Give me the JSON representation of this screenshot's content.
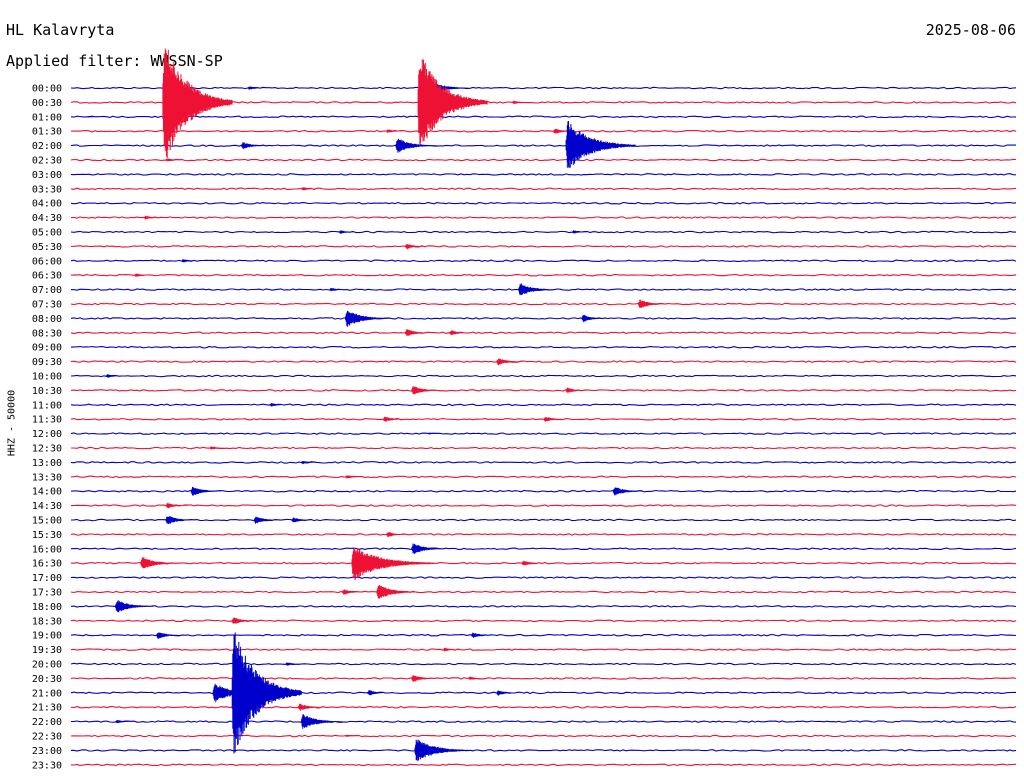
{
  "header": {
    "station": "HL Kalavryta",
    "date": "2025-08-06",
    "filter_label": "Applied filter: WWSSN-SP"
  },
  "chart_data": {
    "type": "line",
    "title": "HL Kalavryta",
    "ylabel": "HHZ - 50000",
    "colors": [
      "#0000cc",
      "#ee1133"
    ],
    "x_range_minutes": [
      0,
      30
    ],
    "trace_labels": [
      "00:00",
      "00:30",
      "01:00",
      "01:30",
      "02:00",
      "02:30",
      "03:00",
      "03:30",
      "04:00",
      "04:30",
      "05:00",
      "05:30",
      "06:00",
      "06:30",
      "07:00",
      "07:30",
      "08:00",
      "08:30",
      "09:00",
      "09:30",
      "10:00",
      "10:30",
      "11:00",
      "11:30",
      "12:00",
      "12:30",
      "13:00",
      "13:30",
      "14:00",
      "14:30",
      "15:00",
      "15:30",
      "16:00",
      "16:30",
      "17:00",
      "17:30",
      "18:00",
      "18:30",
      "19:00",
      "19:30",
      "20:00",
      "20:30",
      "21:00",
      "21:30",
      "22:00",
      "22:30",
      "23:00",
      "23:30"
    ],
    "events": [
      {
        "trace": 0,
        "minute": 11.3,
        "amplitude": 8
      },
      {
        "trace": 0,
        "minute": 5.6,
        "amplitude": 2
      },
      {
        "trace": 1,
        "minute": 2.9,
        "amplitude": 65
      },
      {
        "trace": 1,
        "minute": 11.0,
        "amplitude": 52
      },
      {
        "trace": 1,
        "minute": 14.0,
        "amplitude": 2
      },
      {
        "trace": 2,
        "minute": 0.5,
        "amplitude": 1
      },
      {
        "trace": 3,
        "minute": 15.3,
        "amplitude": 3
      },
      {
        "trace": 3,
        "minute": 10.0,
        "amplitude": 2
      },
      {
        "trace": 4,
        "minute": 10.3,
        "amplitude": 8
      },
      {
        "trace": 4,
        "minute": 5.4,
        "amplitude": 4
      },
      {
        "trace": 4,
        "minute": 15.7,
        "amplitude": 26
      },
      {
        "trace": 5,
        "minute": 3.0,
        "amplitude": 2
      },
      {
        "trace": 7,
        "minute": 7.3,
        "amplitude": 2
      },
      {
        "trace": 9,
        "minute": 2.3,
        "amplitude": 2
      },
      {
        "trace": 10,
        "minute": 8.5,
        "amplitude": 2
      },
      {
        "trace": 10,
        "minute": 15.9,
        "amplitude": 2
      },
      {
        "trace": 11,
        "minute": 10.6,
        "amplitude": 3
      },
      {
        "trace": 12,
        "minute": 3.5,
        "amplitude": 2
      },
      {
        "trace": 13,
        "minute": 2.0,
        "amplitude": 2
      },
      {
        "trace": 14,
        "minute": 14.2,
        "amplitude": 7
      },
      {
        "trace": 14,
        "minute": 8.2,
        "amplitude": 2
      },
      {
        "trace": 15,
        "minute": 18.0,
        "amplitude": 5
      },
      {
        "trace": 16,
        "minute": 8.7,
        "amplitude": 9
      },
      {
        "trace": 16,
        "minute": 16.2,
        "amplitude": 4
      },
      {
        "trace": 17,
        "minute": 10.6,
        "amplitude": 4
      },
      {
        "trace": 17,
        "minute": 12.0,
        "amplitude": 3
      },
      {
        "trace": 19,
        "minute": 13.5,
        "amplitude": 4
      },
      {
        "trace": 20,
        "minute": 1.1,
        "amplitude": 2
      },
      {
        "trace": 21,
        "minute": 10.8,
        "amplitude": 5
      },
      {
        "trace": 21,
        "minute": 15.7,
        "amplitude": 3
      },
      {
        "trace": 22,
        "minute": 6.3,
        "amplitude": 2
      },
      {
        "trace": 23,
        "minute": 9.9,
        "amplitude": 3
      },
      {
        "trace": 23,
        "minute": 15.0,
        "amplitude": 3
      },
      {
        "trace": 24,
        "minute": 11.3,
        "amplitude": 1
      },
      {
        "trace": 25,
        "minute": 4.4,
        "amplitude": 2
      },
      {
        "trace": 26,
        "minute": 7.3,
        "amplitude": 2
      },
      {
        "trace": 27,
        "minute": 8.7,
        "amplitude": 2
      },
      {
        "trace": 28,
        "minute": 3.8,
        "amplitude": 5
      },
      {
        "trace": 28,
        "minute": 17.2,
        "amplitude": 5
      },
      {
        "trace": 29,
        "minute": 3.0,
        "amplitude": 3
      },
      {
        "trace": 30,
        "minute": 3.0,
        "amplitude": 5
      },
      {
        "trace": 30,
        "minute": 5.8,
        "amplitude": 4
      },
      {
        "trace": 30,
        "minute": 7.0,
        "amplitude": 3
      },
      {
        "trace": 31,
        "minute": 10.0,
        "amplitude": 3
      },
      {
        "trace": 32,
        "minute": 10.8,
        "amplitude": 6
      },
      {
        "trace": 33,
        "minute": 2.2,
        "amplitude": 7
      },
      {
        "trace": 33,
        "minute": 8.9,
        "amplitude": 18
      },
      {
        "trace": 33,
        "minute": 10.2,
        "amplitude": 4
      },
      {
        "trace": 33,
        "minute": 14.3,
        "amplitude": 3
      },
      {
        "trace": 35,
        "minute": 9.7,
        "amplitude": 8
      },
      {
        "trace": 35,
        "minute": 8.6,
        "amplitude": 3
      },
      {
        "trace": 36,
        "minute": 1.4,
        "amplitude": 7
      },
      {
        "trace": 37,
        "minute": 5.1,
        "amplitude": 4
      },
      {
        "trace": 38,
        "minute": 2.7,
        "amplitude": 4
      },
      {
        "trace": 38,
        "minute": 12.7,
        "amplitude": 3
      },
      {
        "trace": 39,
        "minute": 11.8,
        "amplitude": 2
      },
      {
        "trace": 40,
        "minute": 6.8,
        "amplitude": 2
      },
      {
        "trace": 41,
        "minute": 10.8,
        "amplitude": 4
      },
      {
        "trace": 41,
        "minute": 12.6,
        "amplitude": 2
      },
      {
        "trace": 42,
        "minute": 4.5,
        "amplitude": 10
      },
      {
        "trace": 42,
        "minute": 5.1,
        "amplitude": 66
      },
      {
        "trace": 42,
        "minute": 9.4,
        "amplitude": 3
      },
      {
        "trace": 42,
        "minute": 13.5,
        "amplitude": 3
      },
      {
        "trace": 43,
        "minute": 7.2,
        "amplitude": 4
      },
      {
        "trace": 44,
        "minute": 7.3,
        "amplitude": 8
      },
      {
        "trace": 44,
        "minute": 1.4,
        "amplitude": 2
      },
      {
        "trace": 45,
        "minute": 8.7,
        "amplitude": 1
      },
      {
        "trace": 46,
        "minute": 10.9,
        "amplitude": 12
      },
      {
        "trace": 46,
        "minute": 11.6,
        "amplitude": 2
      }
    ]
  }
}
